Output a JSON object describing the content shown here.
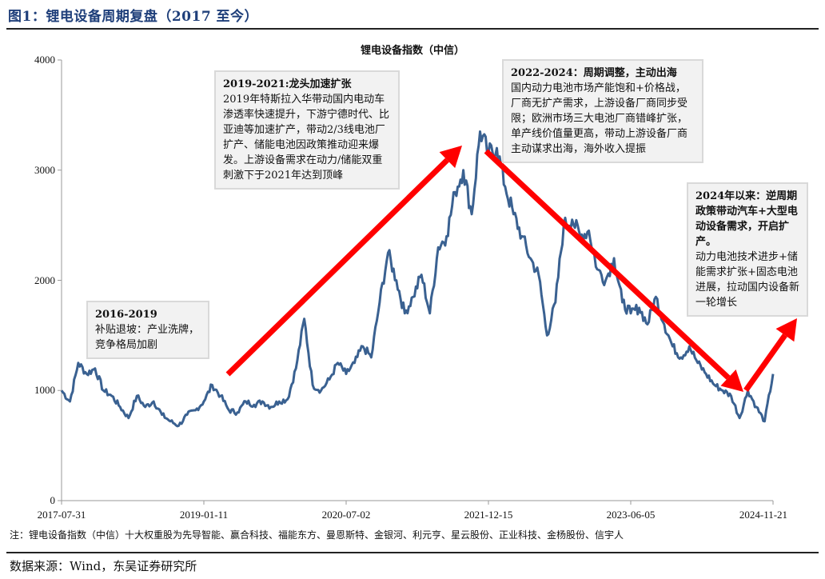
{
  "figure": {
    "title": "图1：锂电设备周期复盘（2017 至今）",
    "note": "注：锂电设备指数（中信）十大权重股为先导智能、赢合科技、福能东方、曼恩斯特、金银河、利元亨、星云股份、正业科技、金杨股份、信宇人",
    "source": "数据来源：Wind，东吴证券研究所"
  },
  "annotations": [
    {
      "heading": "2016-2019",
      "body": "补贴退坡：产业洗牌，竞争格局加剧"
    },
    {
      "heading": "2019-2021:龙头加速扩张",
      "body": "2019年特斯拉入华带动国内电动车渗透率快速提升，下游宁德时代、比亚迪等加速扩产，带动2/3线电池厂扩产、储能电池因政策推动迎来爆发。上游设备需求在动力/储能双重刺激下于2021年达到顶峰"
    },
    {
      "heading": "2022-2024：周期调整，主动出海",
      "body": "国内动力电池市场产能饱和+价格战，厂商无扩产需求，上游设备厂商同步受限；欧洲市场三大电池厂商错峰扩张，单产线价值量更高，带动上游设备厂商主动谋求出海，海外收入提振"
    },
    {
      "heading": "2024年以来：逆周期政策带动汽车+大型电动设备需求，开启扩产。",
      "body": "动力电池技术进步+储能需求扩张+固态电池进展，拉动国内设备新一轮增长"
    }
  ],
  "colors": {
    "series": "#3a6191",
    "arrow": "#ff0000",
    "title": "#1f3f7a",
    "box_bg": "#f2f2f2",
    "box_border": "#d9d9d9"
  },
  "chart_data": {
    "type": "line",
    "title": "锂电设备指数（中信）",
    "xlabel": "",
    "ylabel": "",
    "ylim": [
      0,
      4000
    ],
    "yticks": [
      0,
      1000,
      2000,
      3000,
      4000
    ],
    "xticks": [
      "2017-07-31",
      "2019-01-11",
      "2020-07-02",
      "2021-12-15",
      "2023-06-05",
      "2024-11-21"
    ],
    "grid": false,
    "legend": "none",
    "series": [
      {
        "name": "锂电设备指数（中信）",
        "x": [
          "2017-07-31",
          "2017-08",
          "2017-10",
          "2017-11",
          "2017-12",
          "2018-01",
          "2018-02",
          "2018-04",
          "2018-05",
          "2018-06",
          "2018-07",
          "2018-08",
          "2018-10",
          "2018-11",
          "2018-12",
          "2019-01",
          "2019-02",
          "2019-03",
          "2019-04",
          "2019-05",
          "2019-06",
          "2019-07",
          "2019-08",
          "2019-09",
          "2019-10",
          "2019-11",
          "2019-12",
          "2020-01",
          "2020-02",
          "2020-03",
          "2020-04",
          "2020-05",
          "2020-06",
          "2020-07",
          "2020-08",
          "2020-09",
          "2020-10",
          "2020-11",
          "2020-12",
          "2021-01",
          "2021-02",
          "2021-03",
          "2021-04",
          "2021-05",
          "2021-06",
          "2021-07",
          "2021-08",
          "2021-09",
          "2021-10",
          "2021-11",
          "2021-12",
          "2022-01",
          "2022-02",
          "2022-03",
          "2022-04",
          "2022-05",
          "2022-06",
          "2022-07",
          "2022-08",
          "2022-09",
          "2022-10",
          "2022-11",
          "2022-12",
          "2023-01",
          "2023-02",
          "2023-03",
          "2023-04",
          "2023-05",
          "2023-06",
          "2023-07",
          "2023-08",
          "2023-09",
          "2023-10",
          "2023-11",
          "2023-12",
          "2024-01",
          "2024-02",
          "2024-03",
          "2024-04",
          "2024-05",
          "2024-06",
          "2024-07",
          "2024-08",
          "2024-09",
          "2024-10",
          "2024-11-21"
        ],
        "values": [
          1000,
          900,
          1250,
          1150,
          1200,
          1000,
          950,
          850,
          750,
          950,
          850,
          900,
          780,
          720,
          680,
          780,
          820,
          900,
          1050,
          950,
          820,
          800,
          900,
          870,
          900,
          850,
          900,
          920,
          1200,
          1650,
          1050,
          1000,
          1100,
          1250,
          1150,
          1250,
          1400,
          1300,
          1800,
          2250,
          2000,
          1700,
          1850,
          2050,
          1700,
          2300,
          2400,
          2800,
          3000,
          2600,
          3350,
          3150,
          3200,
          2850,
          2600,
          2400,
          2200,
          2050,
          1500,
          1800,
          2500,
          2550,
          2400,
          2450,
          2100,
          2000,
          2200,
          1800,
          1700,
          1750,
          1600,
          1850,
          1600,
          1400,
          1300,
          1400,
          1250,
          1150,
          1050,
          1000,
          950,
          750,
          1000,
          850,
          720,
          1150
        ]
      }
    ],
    "annotation_boxes": [
      "2016-2019",
      "2019-2021:龙头加速扩张",
      "2022-2024：周期调整，主动出海",
      "2024年以来：逆周期政策带动汽车+大型电动设备需求，开启扩产。"
    ],
    "arrows": [
      "up: 2019-01 to 2021-12 peak",
      "down: 2022-01 to 2024-09 trough",
      "up: 2024-09 onward"
    ]
  }
}
